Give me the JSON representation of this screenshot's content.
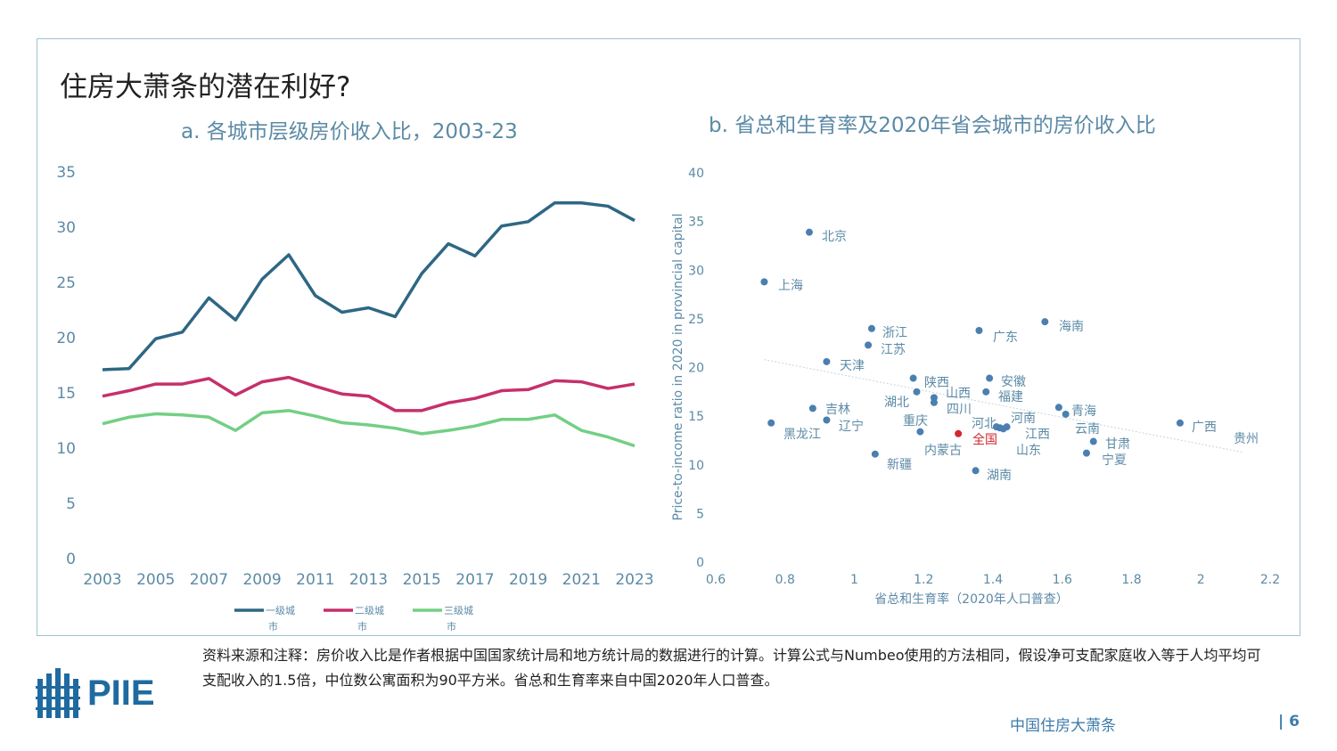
{
  "title": "住房大萧条的潜在利好?",
  "note": "资料来源和注释：房价收入比是作者根据中国国家统计局和地方统计局的数据进行的计算。计算公式与Numbeo使用的方法相同，假设净可支配家庭收入等于人均平均可支配收入的1.5倍，中位数公寓面积为90平方米。省总和生育率来自中国2020年人口普查。",
  "logo": "PIIE",
  "footer": "中国住房大萧条",
  "page": "| 6",
  "chart_data": [
    {
      "type": "line",
      "title": "a. 各城市层级房价收入比，2003-23",
      "xlabel": "",
      "ylabel": "",
      "ylim": [
        0,
        35
      ],
      "yticks": [
        0,
        5,
        10,
        15,
        20,
        25,
        30,
        35
      ],
      "x": [
        2003,
        2004,
        2005,
        2006,
        2007,
        2008,
        2009,
        2010,
        2011,
        2012,
        2013,
        2014,
        2015,
        2016,
        2017,
        2018,
        2019,
        2020,
        2021,
        2022,
        2023
      ],
      "xticks": [
        2003,
        2005,
        2007,
        2009,
        2011,
        2013,
        2015,
        2017,
        2019,
        2021,
        2023
      ],
      "legend": "bottom",
      "series": [
        {
          "name": "一级城市",
          "color": "#2e6784",
          "values": [
            17.1,
            17.2,
            19.9,
            20.5,
            23.6,
            21.6,
            25.3,
            27.5,
            23.8,
            22.3,
            22.7,
            21.9,
            25.8,
            28.5,
            27.4,
            30.1,
            30.5,
            32.2,
            32.2,
            31.9,
            30.6
          ]
        },
        {
          "name": "二级城市",
          "color": "#c6306a",
          "values": [
            14.7,
            15.2,
            15.8,
            15.8,
            16.3,
            14.8,
            16.0,
            16.4,
            15.6,
            14.9,
            14.7,
            13.4,
            13.4,
            14.1,
            14.5,
            15.2,
            15.3,
            16.1,
            16.0,
            15.4,
            15.8
          ]
        },
        {
          "name": "三级城市",
          "color": "#72cf84",
          "values": [
            12.2,
            12.8,
            13.1,
            13.0,
            12.8,
            11.6,
            13.2,
            13.4,
            12.9,
            12.3,
            12.1,
            11.8,
            11.3,
            11.6,
            12.0,
            12.6,
            12.6,
            13.0,
            11.6,
            11.0,
            10.2
          ]
        }
      ]
    },
    {
      "type": "scatter",
      "title": "b. 省总和生育率及2020年省会城市的房价收入比",
      "xlabel": "省总和生育率（2020年人口普查）",
      "ylabel": "Price-to-income ratio in 2020 in provincial capital",
      "xlim": [
        0.6,
        2.2
      ],
      "ylim": [
        0,
        40
      ],
      "xticks": [
        "0.6",
        "0.8",
        "1",
        "1.2",
        "1.4",
        "1.6",
        "1.8",
        "2",
        "2.2"
      ],
      "yticks": [
        0,
        5,
        10,
        15,
        20,
        25,
        30,
        35,
        40
      ],
      "trend": [
        [
          0.74,
          20.8
        ],
        [
          2.12,
          11.3
        ]
      ],
      "points": [
        {
          "label": "北京",
          "x": 0.87,
          "y": 33.9
        },
        {
          "label": "上海",
          "x": 0.74,
          "y": 28.8
        },
        {
          "label": "浙江",
          "x": 1.05,
          "y": 24.0
        },
        {
          "label": "江苏",
          "x": 1.04,
          "y": 22.3
        },
        {
          "label": "天津",
          "x": 0.92,
          "y": 20.6
        },
        {
          "label": "广东",
          "x": 1.36,
          "y": 23.8
        },
        {
          "label": "海南",
          "x": 1.55,
          "y": 24.7
        },
        {
          "label": "陕西",
          "x": 1.17,
          "y": 18.9
        },
        {
          "label": "安徽",
          "x": 1.39,
          "y": 18.9
        },
        {
          "label": "湖北",
          "x": 1.18,
          "y": 17.5
        },
        {
          "label": "山西",
          "x": 1.23,
          "y": 16.9
        },
        {
          "label": "四川",
          "x": 1.23,
          "y": 16.4
        },
        {
          "label": "福建",
          "x": 1.38,
          "y": 17.5
        },
        {
          "label": "吉林",
          "x": 0.88,
          "y": 15.8
        },
        {
          "label": "辽宁",
          "x": 0.92,
          "y": 14.6
        },
        {
          "label": "黑龙江",
          "x": 0.76,
          "y": 14.3
        },
        {
          "label": "重庆",
          "x": 1.19,
          "y": 13.4
        },
        {
          "label": "全国",
          "x": 1.3,
          "y": 13.2,
          "highlight": true
        },
        {
          "label": "河北",
          "x": 1.41,
          "y": 13.9
        },
        {
          "label": "河南",
          "x": 1.44,
          "y": 13.9
        },
        {
          "label": "江西",
          "x": 1.42,
          "y": 13.8
        },
        {
          "label": "山东",
          "x": 1.43,
          "y": 13.7
        },
        {
          "label": "青海",
          "x": 1.59,
          "y": 15.9
        },
        {
          "label": "云南",
          "x": 1.61,
          "y": 15.2
        },
        {
          "label": "广西",
          "x": 1.94,
          "y": 14.3
        },
        {
          "label": "甘肃",
          "x": 1.69,
          "y": 12.4
        },
        {
          "label": "宁夏",
          "x": 1.67,
          "y": 11.2
        },
        {
          "label": "新疆",
          "x": 1.06,
          "y": 11.1
        },
        {
          "label": "湖南",
          "x": 1.35,
          "y": 9.4
        },
        {
          "label": "内蒙古",
          "x": 1.19,
          "y": 13.4,
          "label_only": true
        },
        {
          "label": "贵州",
          "x": 2.12,
          "y": 12.0,
          "label_only": true
        }
      ]
    }
  ]
}
